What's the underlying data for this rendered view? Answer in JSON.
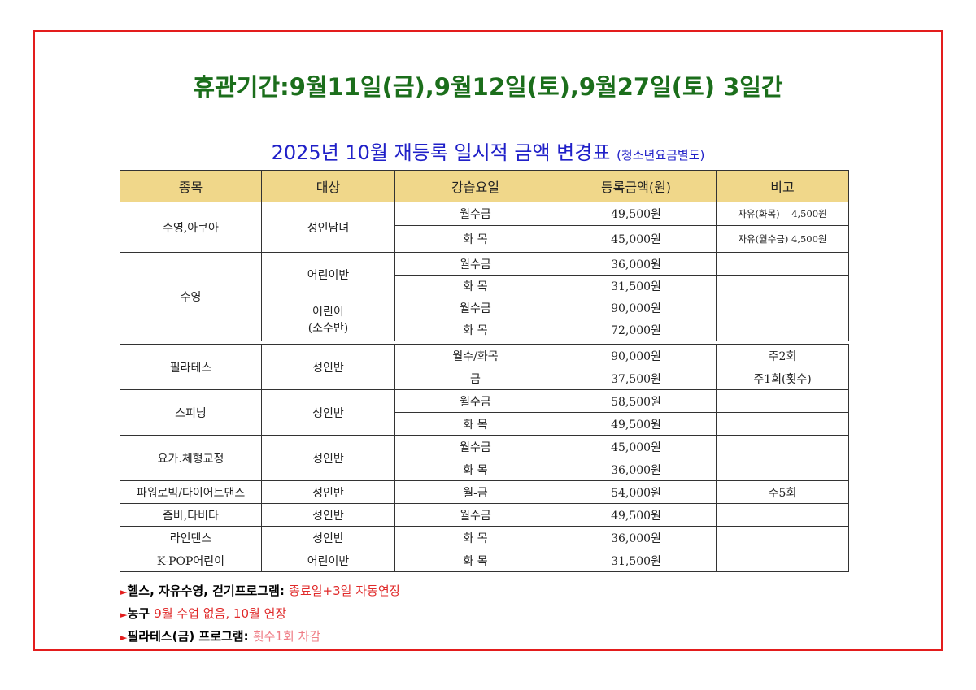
{
  "title": "휴관기간:9월11일(금),9월12일(토),9월27일(토) 3일간",
  "subtitle": "2025년 10월 재등록 일시적 금액 변경표",
  "subtitle_note": "(청소년요금별도)",
  "table": {
    "headers": [
      "종목",
      "대상",
      "강습요일",
      "등록금액(원)",
      "비고"
    ],
    "sections": [
      [
        {
          "sport": "수영,아쿠아",
          "targets": [
            {
              "name": "성인남녀",
              "rows": [
                {
                  "days": "월수금",
                  "price": "49,500원",
                  "note": "자유(화목)    4,500원"
                },
                {
                  "days": "화 목",
                  "price": "45,000원",
                  "note": "자유(월수금) 4,500원"
                }
              ]
            }
          ]
        },
        {
          "sport": "수영",
          "targets": [
            {
              "name": "어린이반",
              "rows": [
                {
                  "days": "월수금",
                  "price": "36,000원",
                  "note": ""
                },
                {
                  "days": "화 목",
                  "price": "31,500원",
                  "note": ""
                }
              ]
            },
            {
              "name": "어린이\n(소수반)",
              "rows": [
                {
                  "days": "월수금",
                  "price": "90,000원",
                  "note": ""
                },
                {
                  "days": "화 목",
                  "price": "72,000원",
                  "note": ""
                }
              ]
            }
          ]
        }
      ],
      [
        {
          "sport": "필라테스",
          "targets": [
            {
              "name": "성인반",
              "rows": [
                {
                  "days": "월수/화목",
                  "price": "90,000원",
                  "note": "주2회"
                },
                {
                  "days": "금",
                  "price": "37,500원",
                  "note": "주1회(횟수)"
                }
              ]
            }
          ]
        },
        {
          "sport": "스피닝",
          "targets": [
            {
              "name": "성인반",
              "rows": [
                {
                  "days": "월수금",
                  "price": "58,500원",
                  "note": ""
                },
                {
                  "days": "화 목",
                  "price": "49,500원",
                  "note": ""
                }
              ]
            }
          ]
        },
        {
          "sport": "요가.체형교정",
          "targets": [
            {
              "name": "성인반",
              "rows": [
                {
                  "days": "월수금",
                  "price": "45,000원",
                  "note": ""
                },
                {
                  "days": "화 목",
                  "price": "36,000원",
                  "note": ""
                }
              ]
            }
          ]
        },
        {
          "sport": "파워로빅/다이어트댄스",
          "targets": [
            {
              "name": "성인반",
              "rows": [
                {
                  "days": "월-금",
                  "price": "54,000원",
                  "note": "주5회"
                }
              ]
            }
          ]
        },
        {
          "sport": "줌바,타비타",
          "targets": [
            {
              "name": "성인반",
              "rows": [
                {
                  "days": "월수금",
                  "price": "49,500원",
                  "note": ""
                }
              ]
            }
          ]
        },
        {
          "sport": "라인댄스",
          "targets": [
            {
              "name": "성인반",
              "rows": [
                {
                  "days": "화 목",
                  "price": "36,000원",
                  "note": ""
                }
              ]
            }
          ]
        },
        {
          "sport": "K-POP어린이",
          "targets": [
            {
              "name": "어린이반",
              "rows": [
                {
                  "days": "화 목",
                  "price": "31,500원",
                  "note": ""
                }
              ]
            }
          ]
        }
      ]
    ]
  },
  "notes": [
    {
      "label": "헬스, 자유수영, 걷기프로그램: ",
      "value": "종료일+3일 자동연장",
      "color": "red"
    },
    {
      "label": "농구 ",
      "value": "9월 수업 없음, 10월 연장",
      "color": "red"
    },
    {
      "label": "필라테스(금) 프로그램: ",
      "value": "횟수1회 차감",
      "color": "pink"
    }
  ],
  "colors": {
    "title": "#1b6e1b",
    "subtitle": "#2020c8",
    "border": "#e31d1d",
    "header_bg": "#f0d78a"
  }
}
